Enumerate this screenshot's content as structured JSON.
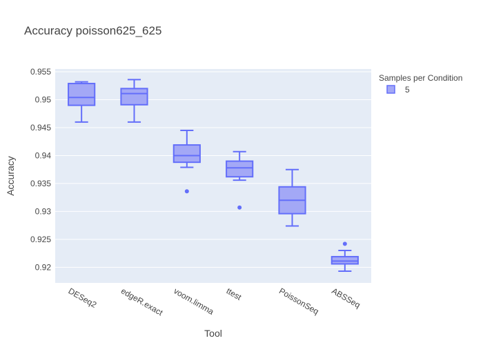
{
  "chart_data": {
    "type": "box",
    "title": "Accuracy poisson625_625",
    "xlabel": "Tool",
    "ylabel": "Accuracy",
    "categories": [
      "DESeq2",
      "edgeR.exact",
      "voom.limma",
      "ttest",
      "PoissonSeq",
      "ABSSeq"
    ],
    "ylim": [
      0.9172,
      0.9555
    ],
    "yticks": [
      0.92,
      0.925,
      0.93,
      0.935,
      0.94,
      0.945,
      0.95,
      0.955
    ],
    "ytick_labels": [
      "0.92",
      "0.925",
      "0.93",
      "0.935",
      "0.94",
      "0.945",
      "0.95",
      "0.955"
    ],
    "grid": true,
    "legend": {
      "title": "Samples per Condition",
      "position": "top-right",
      "entries": [
        "5"
      ]
    },
    "colors": {
      "box_line": "#636efa",
      "box_fill": "#a3a8f6",
      "plot_bg": "#e5ecf6",
      "grid": "#ffffff"
    },
    "series": [
      {
        "name": "5",
        "boxes": [
          {
            "category": "DESeq2",
            "lowerfence": 0.946,
            "q1": 0.949,
            "median": 0.9504,
            "q3": 0.9529,
            "upperfence": 0.9532,
            "outliers": []
          },
          {
            "category": "edgeR.exact",
            "lowerfence": 0.946,
            "q1": 0.9491,
            "median": 0.9511,
            "q3": 0.952,
            "upperfence": 0.9536,
            "outliers": []
          },
          {
            "category": "voom.limma",
            "lowerfence": 0.9379,
            "q1": 0.9388,
            "median": 0.94,
            "q3": 0.9419,
            "upperfence": 0.9445,
            "outliers": [
              0.9336
            ]
          },
          {
            "category": "ttest",
            "lowerfence": 0.9356,
            "q1": 0.9362,
            "median": 0.9378,
            "q3": 0.939,
            "upperfence": 0.9407,
            "outliers": [
              0.9307
            ]
          },
          {
            "category": "PoissonSeq",
            "lowerfence": 0.9274,
            "q1": 0.9296,
            "median": 0.932,
            "q3": 0.9344,
            "upperfence": 0.9375,
            "outliers": []
          },
          {
            "category": "ABSSeq",
            "lowerfence": 0.9193,
            "q1": 0.9206,
            "median": 0.9211,
            "q3": 0.9219,
            "upperfence": 0.923,
            "outliers": [
              0.9242
            ]
          }
        ]
      }
    ]
  }
}
